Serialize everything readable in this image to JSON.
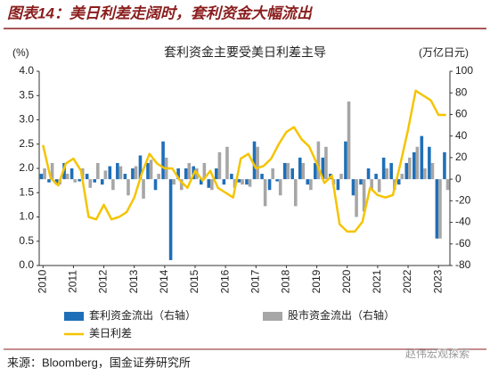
{
  "header": "图表14：美日利差走阔时，套利资金大幅流出",
  "source": "来源：Bloomberg，国金证券研究所",
  "watermark": "赵伟宏观探索",
  "chart_data": {
    "type": "bar",
    "title": "套利资金主要受美日利差主导",
    "y_label": "(%)",
    "y2_label": "(万亿日元)",
    "categories": [
      "2010",
      null,
      null,
      null,
      "2011",
      null,
      null,
      null,
      "2012",
      null,
      null,
      null,
      "2013",
      null,
      null,
      null,
      "2014",
      null,
      null,
      null,
      "2015",
      null,
      null,
      null,
      "2016",
      null,
      null,
      null,
      "2017",
      null,
      null,
      null,
      "2018",
      null,
      null,
      null,
      "2019",
      null,
      null,
      null,
      "2020",
      null,
      null,
      null,
      "2021",
      null,
      null,
      null,
      "2022",
      null,
      null,
      null,
      "2023",
      null
    ],
    "ylim": [
      0,
      4
    ],
    "yticks": [
      {
        "value": 0,
        "label": "0.0"
      },
      {
        "value": 0.5,
        "label": "0.5"
      },
      {
        "value": 1,
        "label": "1.0"
      },
      {
        "value": 1.5,
        "label": "1.5"
      },
      {
        "value": 2,
        "label": "2.0"
      },
      {
        "value": 2.5,
        "label": "2.5"
      },
      {
        "value": 3,
        "label": "3.0"
      },
      {
        "value": 3.5,
        "label": "3.5"
      },
      {
        "value": 4,
        "label": "4.0"
      }
    ],
    "y2lim": [
      -80,
      100
    ],
    "y2ticks": [
      -80,
      -60,
      -40,
      -20,
      0,
      20,
      40,
      60,
      80,
      100
    ],
    "series": [
      {
        "name": "套利资金流出（右轴）",
        "type": "bar",
        "axis": "y2",
        "color": "#1f6fb8",
        "values": [
          5,
          -3,
          -5,
          15,
          10,
          -2,
          5,
          -3,
          -5,
          12,
          15,
          5,
          10,
          22,
          15,
          -10,
          35,
          -75,
          10,
          10,
          12,
          -5,
          -8,
          10,
          -5,
          5,
          -3,
          -5,
          35,
          5,
          -10,
          -2,
          15,
          10,
          20,
          -5,
          15,
          20,
          5,
          -10,
          35,
          -15,
          -5,
          10,
          5,
          20,
          15,
          -5,
          15,
          25,
          40,
          30,
          -55,
          25
        ]
      },
      {
        "name": "股市资金流出（右轴）",
        "type": "bar",
        "axis": "y2",
        "color": "#a6a6a6",
        "values": [
          10,
          15,
          -5,
          5,
          -3,
          10,
          -8,
          15,
          8,
          -10,
          12,
          -15,
          12,
          -18,
          18,
          5,
          20,
          -5,
          -10,
          15,
          10,
          15,
          -10,
          25,
          30,
          -8,
          -5,
          -7,
          30,
          -25,
          10,
          -15,
          15,
          -25,
          15,
          -10,
          35,
          30,
          -5,
          5,
          72,
          -35,
          -30,
          -10,
          -12,
          10,
          -10,
          5,
          20,
          30,
          10,
          15,
          -55,
          -10
        ]
      },
      {
        "name": "美日利差",
        "type": "line",
        "color": "#f5c400",
        "values": [
          2.48,
          1.8,
          1.65,
          2.1,
          2.2,
          1.95,
          1.0,
          0.95,
          1.25,
          0.95,
          1.0,
          1.1,
          1.4,
          1.9,
          2.3,
          2.1,
          2.0,
          2.0,
          1.75,
          1.6,
          1.95,
          1.75,
          1.95,
          1.6,
          1.5,
          1.4,
          2.2,
          2.3,
          2.0,
          2.05,
          2.2,
          2.5,
          2.75,
          2.85,
          2.6,
          2.45,
          2.1,
          1.7,
          1.85,
          0.85,
          0.7,
          0.7,
          0.9,
          1.6,
          1.45,
          1.4,
          1.45,
          2.1,
          2.8,
          3.6,
          3.5,
          3.4,
          3.1,
          3.1
        ]
      }
    ]
  }
}
